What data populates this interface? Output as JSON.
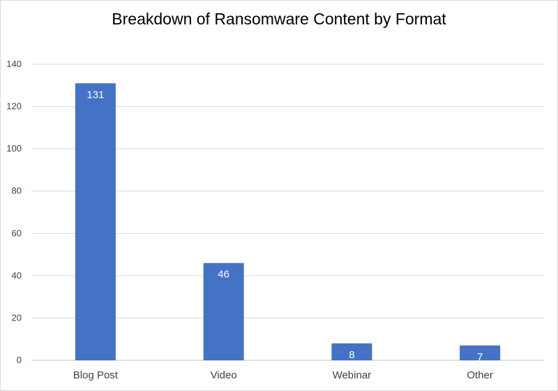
{
  "chart_data": {
    "type": "bar",
    "title": "Breakdown of Ransomware Content by Format",
    "categories": [
      "Blog Post",
      "Video",
      "Webinar",
      "Other"
    ],
    "values": [
      131,
      46,
      8,
      7
    ],
    "data_labels": [
      "131",
      "46",
      "8",
      "7"
    ],
    "ylim": [
      0,
      140
    ],
    "yticks": [
      0,
      20,
      40,
      60,
      80,
      100,
      120,
      140
    ],
    "grid": true,
    "legend": "none",
    "bar_color": "#4472C4"
  }
}
